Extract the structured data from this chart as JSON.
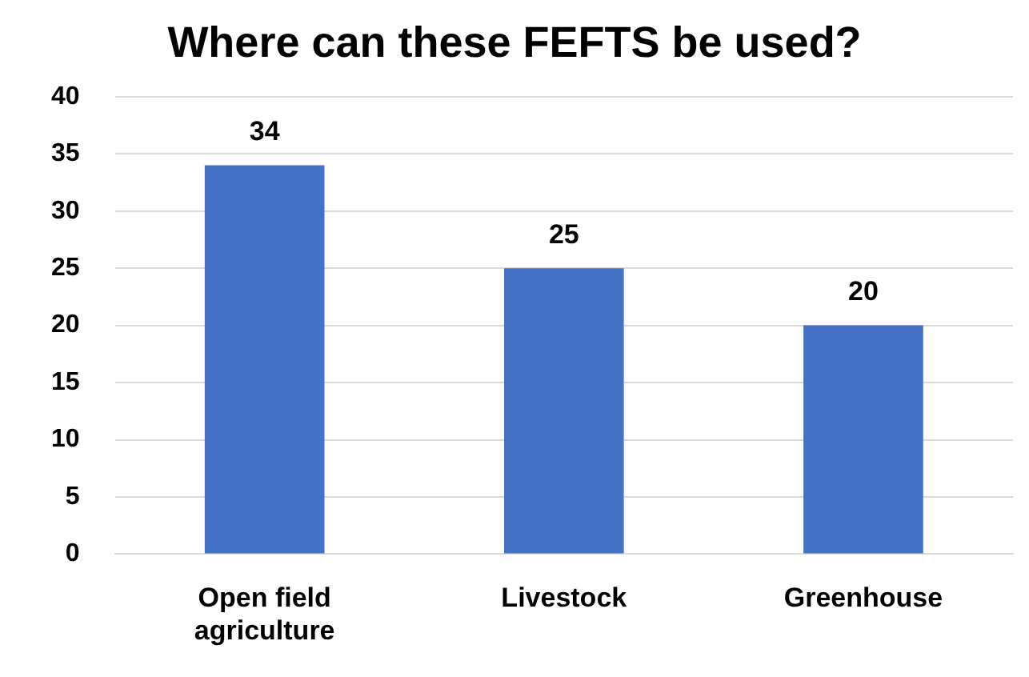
{
  "chart_data": {
    "type": "bar",
    "title": "Where can these FEFTS be used?",
    "categories": [
      "Open field agriculture",
      "Livestock",
      "Greenhouse"
    ],
    "values": [
      34,
      25,
      20
    ],
    "color": "#4472c4",
    "ylim": [
      0,
      40
    ],
    "yticks": [
      0,
      5,
      10,
      15,
      20,
      25,
      30,
      35,
      40
    ],
    "grid": "y",
    "legend": false,
    "data_labels": true
  }
}
